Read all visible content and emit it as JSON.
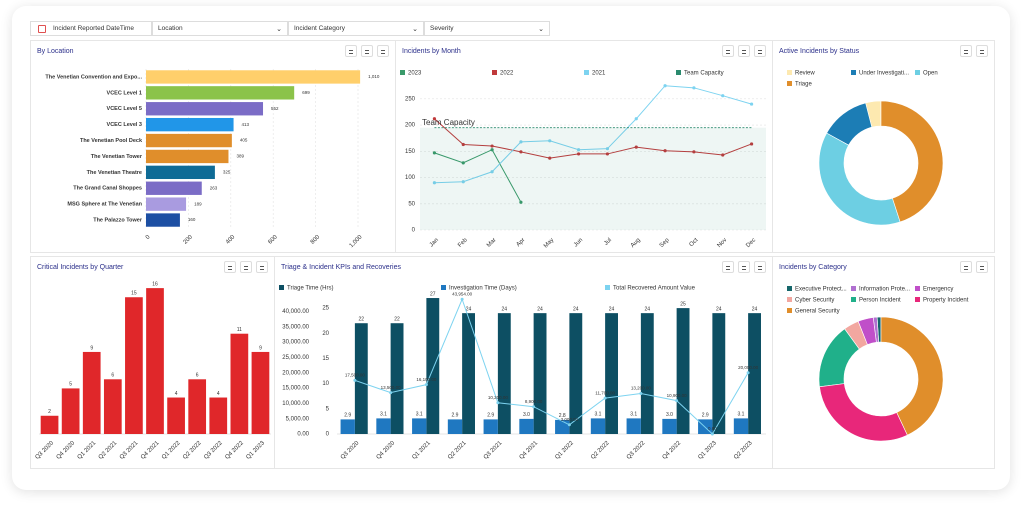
{
  "filters": [
    "Incident Reported DateTime",
    "Location",
    "Incident Category",
    "Severity"
  ],
  "chart_data": [
    {
      "type": "hbar",
      "title": "By Location",
      "categories": [
        "The Venetian Convention and Expo...",
        "VCEC Level 1",
        "VCEC Level 5",
        "VCEC Level 3",
        "The Venetian Pool Deck",
        "The Venetian Tower",
        "The Venetian Theatre",
        "The Grand Canal Shoppes",
        "MSG Sphere at The Venetian",
        "The Palazzo Tower"
      ],
      "values": [
        1010,
        699,
        552,
        413,
        405,
        389,
        325,
        263,
        189,
        160
      ],
      "value_labels": [
        "1,010",
        "699",
        "552",
        "413",
        "405",
        "389",
        "325",
        "263",
        "189",
        "160"
      ],
      "colors": [
        "#ffcf6b",
        "#8bc34a",
        "#7b6cc6",
        "#2196e8",
        "#e08e2b",
        "#e08e2b",
        "#0e6b96",
        "#7b6cc6",
        "#a99be0",
        "#1d4fa3"
      ],
      "xlim": [
        0,
        1000
      ],
      "xticks": [
        0,
        200,
        400,
        600,
        800,
        {
          "value": 1000,
          "label": "1,000"
        }
      ],
      "grid": true
    },
    {
      "type": "line",
      "title": "Incidents by Month",
      "categories": [
        "Jan",
        "Feb",
        "Mar",
        "Apr",
        "May",
        "Jun",
        "Jul",
        "Aug",
        "Sep",
        "Oct",
        "Nov",
        "Dec"
      ],
      "series": [
        {
          "name": "2023",
          "color": "#3a9a6a",
          "values": [
            147,
            128,
            153,
            53,
            null,
            null,
            null,
            null,
            null,
            null,
            null,
            null
          ]
        },
        {
          "name": "2022",
          "color": "#c0393b",
          "values": [
            212,
            163,
            160,
            149,
            137,
            145,
            145,
            158,
            151,
            149,
            143,
            164
          ]
        },
        {
          "name": "2021",
          "color": "#7dd3f0",
          "values": [
            90,
            92,
            111,
            168,
            170,
            153,
            155,
            212,
            275,
            271,
            256,
            240
          ]
        },
        {
          "name": "Team Capacity",
          "color": "#2a8a6e",
          "area": true,
          "values": [
            195,
            195,
            195,
            195,
            195,
            195,
            195,
            195,
            195,
            195,
            195,
            195
          ]
        }
      ],
      "ylim": [
        0,
        284
      ],
      "yticks": [
        0,
        50,
        100,
        150,
        200,
        250
      ],
      "grid": true
    },
    {
      "type": "donut",
      "title": "Active Incidents by Status",
      "categories": [
        "Review",
        "Under Investigati...",
        "Open",
        "Triage"
      ],
      "values": [
        4,
        13,
        38,
        45
      ],
      "colors": [
        "#fde9b0",
        "#1c7db5",
        "#6dcfe3",
        "#e08e2b"
      ]
    },
    {
      "type": "bar",
      "title": "Critical Incidents by Quarter",
      "categories": [
        "Q3 2020",
        "Q4 2020",
        "Q1 2021",
        "Q2 2021",
        "Q3 2021",
        "Q4 2021",
        "Q1 2022",
        "Q2 2022",
        "Q3 2022",
        "Q4 2022",
        "Q1 2023"
      ],
      "values": [
        2,
        5,
        9,
        6,
        15,
        16,
        4,
        6,
        4,
        11,
        9
      ],
      "color": "#e0272a",
      "ylim": [
        0,
        17
      ]
    },
    {
      "type": "combo",
      "title": "Triage & Incident KPIs and Recoveries",
      "categories": [
        "Q3 2020",
        "Q4 2020",
        "Q1 2021",
        "Q2 2021",
        "Q3 2021",
        "Q4 2021",
        "Q1 2022",
        "Q2 2022",
        "Q3 2022",
        "Q4 2022",
        "Q1 2023",
        "Q2 2023"
      ],
      "series": [
        {
          "name": "Triage Time (Hrs)",
          "type": "bar",
          "axis": "y2",
          "color": "#0d4f63",
          "values": [
            22,
            22,
            27,
            24,
            24,
            24,
            24,
            24,
            24,
            25,
            24,
            24
          ]
        },
        {
          "name": "Investigation Time (Days)",
          "type": "bar",
          "axis": "y2",
          "color": "#1f78c1",
          "values": [
            2.9,
            3.1,
            3.1,
            2.9,
            2.9,
            3.0,
            2.8,
            3.1,
            3.1,
            3.0,
            2.9,
            3.1
          ],
          "value_labels": [
            "2.9",
            "3.1",
            "3.1",
            "2.9",
            "2.9",
            "3.0",
            "2.8",
            "3.1",
            "3.1",
            "3.0",
            "2.9",
            "3.1"
          ]
        },
        {
          "name": "Total Recovered Amount Value",
          "type": "line",
          "axis": "y",
          "color": "#7dd3f0",
          "values": [
            17500,
            13500,
            16100,
            43954,
            10200,
            8900,
            3000,
            11700,
            13200,
            10900,
            0,
            20000
          ],
          "value_labels": [
            "17,500.00",
            "13,500.00",
            "16,100.00",
            "43,954.00",
            "10,200.00",
            "8,900.00",
            "3,000.00",
            "11,700.00",
            "13,200.00",
            "10,900.00",
            "0.00",
            "20,000.00"
          ]
        }
      ],
      "ylim": [
        0,
        46000
      ],
      "yticks": [
        {
          "value": 0,
          "label": "0.00"
        },
        {
          "value": 5000,
          "label": "5,000.00"
        },
        {
          "value": 10000,
          "label": "10,000.00"
        },
        {
          "value": 15000,
          "label": "15,000.00"
        },
        {
          "value": 20000,
          "label": "20,000.00"
        },
        {
          "value": 25000,
          "label": "25,000.00"
        },
        {
          "value": 30000,
          "label": "30,000.00"
        },
        {
          "value": 35000,
          "label": "35,000.00"
        },
        {
          "value": 40000,
          "label": "40,000.00"
        }
      ],
      "y2lim": [
        0,
        28
      ],
      "y2ticks": [
        0,
        5,
        10,
        15,
        20,
        25
      ]
    },
    {
      "type": "donut",
      "title": "Incidents by Category",
      "categories": [
        "Executive Protect...",
        "Information Prote...",
        "Emergency",
        "Cyber Security",
        "Person Incident",
        "Property Incident",
        "General Security"
      ],
      "values": [
        1,
        1,
        4,
        4,
        17,
        30,
        43
      ],
      "colors": [
        "#15666a",
        "#b070d0",
        "#c04fc9",
        "#f2a7a0",
        "#20b08a",
        "#e8277a",
        "#e08e2b"
      ]
    }
  ]
}
